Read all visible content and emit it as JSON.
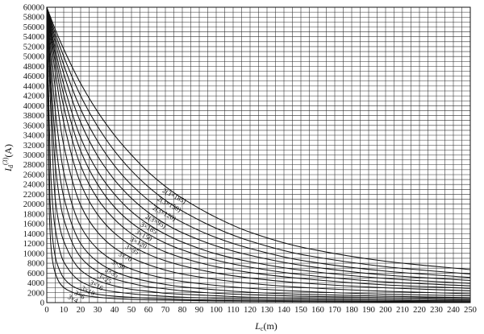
{
  "chart_data": {
    "type": "line",
    "title": "",
    "xlabel": "L_c(m)",
    "xlabel_main": "L",
    "xlabel_sub": "c",
    "xlabel_unit": "(m)",
    "ylabel": "I_d^(3)(A)",
    "ylabel_main": "I",
    "ylabel_sub": "d",
    "ylabel_sup": "(3)",
    "ylabel_unit": "(A)",
    "xlim": [
      0,
      250
    ],
    "ylim": [
      0,
      60000
    ],
    "x_ticks": [
      0,
      10,
      20,
      30,
      40,
      50,
      60,
      70,
      80,
      90,
      100,
      110,
      120,
      130,
      140,
      150,
      160,
      170,
      180,
      190,
      200,
      210,
      220,
      230,
      240,
      250
    ],
    "y_ticks": [
      0,
      2000,
      4000,
      6000,
      8000,
      10000,
      12000,
      14000,
      16000,
      18000,
      20000,
      22000,
      24000,
      26000,
      28000,
      30000,
      32000,
      34000,
      36000,
      38000,
      40000,
      42000,
      44000,
      46000,
      48000,
      50000,
      52000,
      54000,
      56000,
      58000,
      60000
    ],
    "x_minor_step": 5,
    "y_minor_step": 1000,
    "grid": true,
    "legend": "none",
    "series": [
      {
        "name": "2(3×185)",
        "label_at": [
          68,
          22500
        ],
        "x": [
          0,
          5,
          10,
          20,
          30,
          40,
          50,
          60,
          70,
          80,
          100,
          120,
          150,
          200,
          250
        ],
        "y": [
          60000,
          55500,
          51500,
          44500,
          38800,
          34000,
          30000,
          26500,
          23600,
          21200,
          17300,
          14300,
          11300,
          8400,
          6700
        ]
      },
      {
        "name": "2(3×150)",
        "label_at": [
          65,
          20800
        ],
        "x": [
          0,
          5,
          10,
          20,
          30,
          40,
          50,
          60,
          70,
          80,
          100,
          120,
          150,
          200,
          250
        ],
        "y": [
          60000,
          54700,
          50000,
          42000,
          35800,
          30800,
          26800,
          23500,
          20800,
          18600,
          15100,
          12500,
          9800,
          7300,
          5800
        ]
      },
      {
        "name": "2(3×120)",
        "label_at": [
          62,
          19000
        ],
        "x": [
          0,
          5,
          10,
          20,
          30,
          40,
          50,
          60,
          70,
          80,
          100,
          120,
          150,
          200,
          250
        ],
        "y": [
          60000,
          53800,
          48300,
          39300,
          32800,
          27800,
          23900,
          20800,
          18300,
          16300,
          13200,
          11000,
          8600,
          6400,
          5100
        ]
      },
      {
        "name": "2(3×95)",
        "label_at": [
          58,
          17200
        ],
        "x": [
          0,
          5,
          10,
          20,
          30,
          40,
          50,
          60,
          70,
          80,
          100,
          120,
          150,
          200,
          250
        ],
        "y": [
          60000,
          52800,
          46500,
          36600,
          29800,
          24900,
          21200,
          18300,
          16000,
          14200,
          11500,
          9600,
          7600,
          5600,
          4500
        ]
      },
      {
        "name": "3×185",
        "label_at": [
          55,
          15600
        ],
        "x": [
          0,
          5,
          10,
          20,
          30,
          40,
          50,
          60,
          70,
          80,
          100,
          120,
          150,
          200,
          250
        ],
        "y": [
          60000,
          51500,
          44300,
          33500,
          26700,
          22000,
          18500,
          15900,
          13900,
          12300,
          9900,
          8300,
          6600,
          4900,
          3900
        ]
      },
      {
        "name": "3×150",
        "label_at": [
          52,
          14100
        ],
        "x": [
          0,
          5,
          10,
          20,
          30,
          40,
          50,
          60,
          70,
          80,
          100,
          120,
          150,
          200,
          250
        ],
        "y": [
          60000,
          50300,
          42200,
          30800,
          24000,
          19400,
          16200,
          13900,
          12100,
          10700,
          8600,
          7200,
          5700,
          4200,
          3400
        ]
      },
      {
        "name": "3×120",
        "label_at": [
          49,
          12600
        ],
        "x": [
          0,
          5,
          10,
          20,
          30,
          40,
          50,
          60,
          70,
          80,
          100,
          120,
          150,
          200,
          250
        ],
        "y": [
          60000,
          48800,
          39800,
          27800,
          21100,
          16900,
          14000,
          11900,
          10300,
          9100,
          7300,
          6100,
          4900,
          3600,
          2900
        ]
      },
      {
        "name": "3×95",
        "label_at": [
          46,
          11100
        ],
        "x": [
          0,
          5,
          10,
          20,
          30,
          40,
          50,
          60,
          70,
          80,
          100,
          120,
          150,
          200,
          250
        ],
        "y": [
          60000,
          46800,
          36600,
          24200,
          17900,
          14100,
          11600,
          9800,
          8500,
          7500,
          6000,
          5000,
          4000,
          3000,
          2400
        ]
      },
      {
        "name": "3×70",
        "label_at": [
          42,
          9600
        ],
        "x": [
          0,
          5,
          10,
          20,
          30,
          40,
          50,
          60,
          70,
          80,
          100,
          120,
          150,
          200,
          250
        ],
        "y": [
          60000,
          43500,
          32000,
          19800,
          14300,
          11100,
          9100,
          7700,
          6600,
          5800,
          4700,
          3900,
          3100,
          2300,
          1800
        ]
      },
      {
        "name": "3×50",
        "label_at": [
          38,
          8000
        ],
        "x": [
          0,
          5,
          10,
          20,
          30,
          40,
          50,
          60,
          70,
          80,
          100,
          120,
          150,
          200,
          250
        ],
        "y": [
          60000,
          39000,
          26500,
          15500,
          10900,
          8400,
          6800,
          5700,
          4900,
          4300,
          3500,
          2900,
          2300,
          1700,
          1400
        ]
      },
      {
        "name": "3×35",
        "label_at": [
          34,
          6400
        ],
        "x": [
          0,
          5,
          10,
          20,
          30,
          40,
          50,
          60,
          70,
          80,
          100,
          120,
          150,
          200,
          250
        ],
        "y": [
          60000,
          33500,
          21500,
          12000,
          8300,
          6300,
          5100,
          4300,
          3700,
          3200,
          2600,
          2100,
          1700,
          1300,
          1000
        ]
      },
      {
        "name": "3×25",
        "label_at": [
          30,
          5100
        ],
        "x": [
          0,
          5,
          10,
          20,
          30,
          40,
          50,
          60,
          70,
          80,
          100,
          120,
          150,
          200,
          250
        ],
        "y": [
          60000,
          28000,
          17000,
          9200,
          6300,
          4800,
          3900,
          3200,
          2800,
          2400,
          1900,
          1600,
          1300,
          1000,
          800
        ]
      },
      {
        "name": "3×16",
        "label_at": [
          25,
          3800
        ],
        "x": [
          0,
          5,
          10,
          20,
          30,
          40,
          50,
          60,
          70,
          80,
          100,
          120,
          150,
          200,
          250
        ],
        "y": [
          60000,
          21000,
          12500,
          6600,
          4500,
          3400,
          2700,
          2300,
          1900,
          1700,
          1400,
          1100,
          900,
          700,
          550
        ]
      },
      {
        "name": "3×10",
        "label_at": [
          20,
          2700
        ],
        "x": [
          0,
          2.5,
          5,
          10,
          20,
          30,
          40,
          50,
          60,
          80,
          100,
          120,
          150,
          200,
          250
        ],
        "y": [
          60000,
          25000,
          15000,
          8300,
          4300,
          2900,
          2200,
          1800,
          1500,
          1100,
          900,
          750,
          600,
          450,
          360
        ]
      },
      {
        "name": "3×6",
        "label_at": [
          16,
          1700
        ],
        "x": [
          0,
          2,
          4,
          6,
          10,
          15,
          20,
          30,
          40,
          60,
          80,
          100,
          150,
          200,
          250
        ],
        "y": [
          60000,
          20000,
          11500,
          8000,
          5000,
          3400,
          2600,
          1700,
          1300,
          900,
          650,
          520,
          350,
          260,
          210
        ]
      },
      {
        "name": "3×4",
        "label_at": [
          12,
          900
        ],
        "x": [
          0,
          1.5,
          3,
          5,
          8,
          12,
          16,
          20,
          30,
          40,
          60,
          100,
          150,
          200,
          250
        ],
        "y": [
          60000,
          18000,
          9500,
          6000,
          3800,
          2600,
          2000,
          1600,
          1100,
          820,
          560,
          340,
          230,
          170,
          140
        ]
      }
    ]
  }
}
